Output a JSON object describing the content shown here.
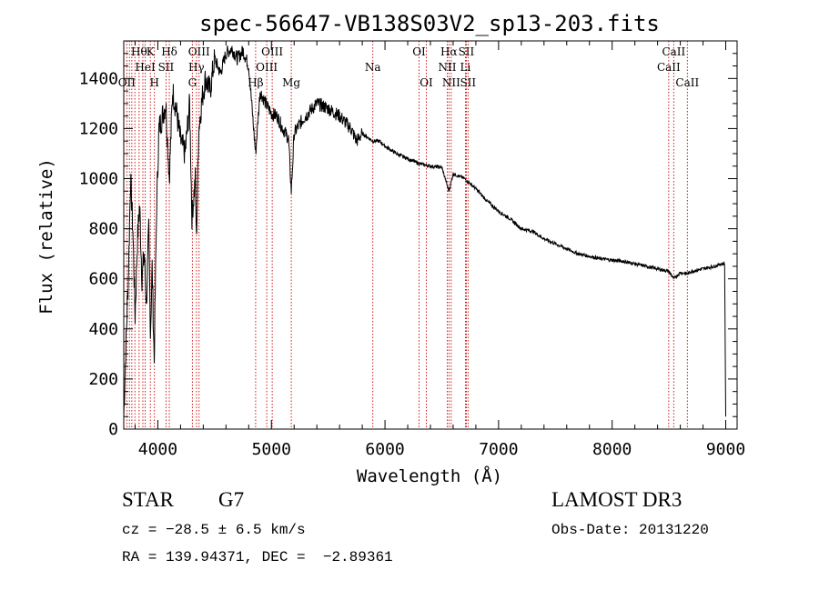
{
  "chart_data": {
    "type": "line",
    "title": "spec-56647-VB138S03V2_sp13-203.fits",
    "xlabel": "Wavelength (Å)",
    "ylabel": "Flux (relative)",
    "xlim": [
      3700,
      9100
    ],
    "ylim": [
      0,
      1550
    ],
    "xticks": [
      4000,
      5000,
      6000,
      7000,
      8000,
      9000
    ],
    "yticks": [
      0,
      200,
      400,
      600,
      800,
      1000,
      1200,
      1400
    ],
    "series": [
      {
        "name": "flux",
        "x": [
          3700,
          3720,
          3740,
          3760,
          3780,
          3800,
          3820,
          3840,
          3860,
          3880,
          3900,
          3920,
          3935,
          3950,
          3968,
          3990,
          4010,
          4040,
          4070,
          4101,
          4130,
          4160,
          4200,
          4240,
          4280,
          4300,
          4330,
          4340,
          4360,
          4390,
          4420,
          4460,
          4500,
          4550,
          4600,
          4650,
          4700,
          4750,
          4800,
          4861,
          4900,
          4950,
          5000,
          5050,
          5100,
          5150,
          5175,
          5200,
          5250,
          5300,
          5400,
          5500,
          5600,
          5700,
          5750,
          5800,
          5893,
          5950,
          6000,
          6100,
          6200,
          6300,
          6400,
          6500,
          6563,
          6600,
          6700,
          6800,
          6900,
          7000,
          7100,
          7200,
          7300,
          7400,
          7500,
          7600,
          7700,
          7800,
          7900,
          8000,
          8100,
          8200,
          8300,
          8400,
          8498,
          8542,
          8600,
          8662,
          8700,
          8800,
          8900,
          8960,
          8990,
          8995,
          9000
        ],
        "y": [
          50,
          350,
          600,
          1000,
          800,
          450,
          750,
          900,
          600,
          700,
          500,
          800,
          380,
          650,
          270,
          900,
          1200,
          1250,
          1300,
          1000,
          1350,
          1280,
          1150,
          1100,
          1300,
          850,
          1000,
          750,
          1200,
          1320,
          1400,
          1350,
          1480,
          1420,
          1500,
          1520,
          1480,
          1510,
          1450,
          1100,
          1350,
          1300,
          1260,
          1250,
          1200,
          1160,
          950,
          1180,
          1220,
          1250,
          1300,
          1280,
          1250,
          1200,
          1150,
          1180,
          1150,
          1150,
          1130,
          1100,
          1080,
          1060,
          1050,
          1045,
          950,
          1020,
          1000,
          960,
          910,
          870,
          840,
          800,
          790,
          760,
          740,
          720,
          700,
          690,
          680,
          675,
          670,
          660,
          650,
          640,
          630,
          600,
          625,
          620,
          630,
          640,
          650,
          660,
          660,
          350,
          50
        ]
      }
    ],
    "lines": [
      {
        "x": 3727,
        "label": "OII",
        "row": 3
      },
      {
        "x": 3750,
        "label": "",
        "row": 0
      },
      {
        "x": 3771,
        "label": "",
        "row": 0
      },
      {
        "x": 3798,
        "label": "",
        "row": 0
      },
      {
        "x": 3835,
        "label": "Hθ",
        "row": 1
      },
      {
        "x": 3868,
        "label": "",
        "row": 0
      },
      {
        "x": 3889,
        "label": "HeI",
        "row": 2
      },
      {
        "x": 3934,
        "label": "K",
        "row": 1
      },
      {
        "x": 3970,
        "label": "H",
        "row": 3
      },
      {
        "x": 4072,
        "label": "SII",
        "row": 2
      },
      {
        "x": 4101,
        "label": "Hδ",
        "row": 1
      },
      {
        "x": 4304,
        "label": "G",
        "row": 3
      },
      {
        "x": 4340,
        "label": "Hγ",
        "row": 2
      },
      {
        "x": 4363,
        "label": "OIII",
        "row": 1
      },
      {
        "x": 4861,
        "label": "Hβ",
        "row": 3
      },
      {
        "x": 4959,
        "label": "OIII",
        "row": 2
      },
      {
        "x": 5007,
        "label": "OIII",
        "row": 1
      },
      {
        "x": 5175,
        "label": "Mg",
        "row": 3
      },
      {
        "x": 5893,
        "label": "Na",
        "row": 2
      },
      {
        "x": 6300,
        "label": "OI",
        "row": 1
      },
      {
        "x": 6364,
        "label": "OI",
        "row": 3
      },
      {
        "x": 6548,
        "label": "NII",
        "row": 2
      },
      {
        "x": 6563,
        "label": "Hα",
        "row": 1
      },
      {
        "x": 6583,
        "label": "NII",
        "row": 3
      },
      {
        "x": 6708,
        "label": "Li",
        "row": 2
      },
      {
        "x": 6716,
        "label": "SII",
        "row": 1
      },
      {
        "x": 6731,
        "label": "SII",
        "row": 3
      },
      {
        "x": 8498,
        "label": "CaII",
        "row": 2
      },
      {
        "x": 8542,
        "label": "CaII",
        "row": 1
      },
      {
        "x": 8662,
        "label": "CaII",
        "row": 3
      }
    ]
  },
  "info": {
    "object_type": "STAR",
    "subclass": "G7",
    "cz": "cz = −28.5 ± 6.5 km/s",
    "radec": "RA = 139.94371, DEC =  −2.89361",
    "survey": "LAMOST DR3",
    "obs_date": "Obs-Date: 20131220"
  },
  "colors": {
    "spectrum": "#000000",
    "lines": "#cc0000",
    "axes": "#000000"
  }
}
